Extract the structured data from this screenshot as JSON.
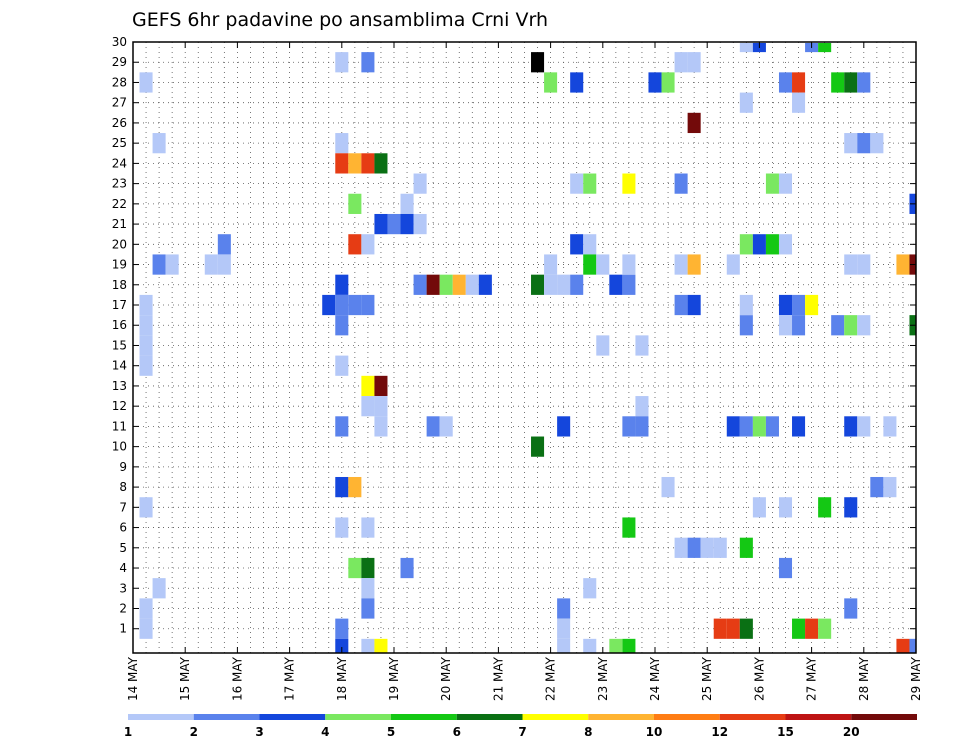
{
  "chart_data": {
    "type": "heatmap",
    "title": "GEFS 6hr padavine po ansamblima Crni Vrh",
    "xlabel": "",
    "ylabel": "",
    "x_ticks": [
      "14 MAY",
      "15 MAY",
      "16 MAY",
      "17 MAY",
      "18 MAY",
      "19 MAY",
      "20 MAY",
      "21 MAY",
      "22 MAY",
      "23 MAY",
      "24 MAY",
      "25 MAY",
      "26 MAY",
      "27 MAY",
      "28 MAY",
      "29 MAY"
    ],
    "y_ticks": [
      "1",
      "2",
      "3",
      "4",
      "5",
      "6",
      "7",
      "8",
      "9",
      "10",
      "11",
      "12",
      "13",
      "14",
      "15",
      "16",
      "17",
      "18",
      "19",
      "20",
      "21",
      "22",
      "23",
      "24",
      "25",
      "26",
      "27",
      "28",
      "29",
      "30"
    ],
    "x_range_days": [
      14,
      29
    ],
    "y_range_members": [
      0,
      30
    ],
    "step_per_day": 4,
    "grid": "dotted",
    "legend_position": "bottom",
    "legend_labels": [
      "1",
      "2",
      "3",
      "4",
      "5",
      "6",
      "7",
      "8",
      "10",
      "12",
      "15",
      "20"
    ],
    "legend_colors": [
      "#b4c8f8",
      "#5a82ec",
      "#1446dc",
      "#7ae860",
      "#14c814",
      "#0a7014",
      "#ffff00",
      "#ffb432",
      "#ff7d14",
      "#e63c14",
      "#be1414",
      "#730a0a"
    ],
    "cells": [
      [
        14.25,
        28,
        1
      ],
      [
        14.5,
        25,
        1
      ],
      [
        14.25,
        17,
        1
      ],
      [
        14.25,
        16,
        1
      ],
      [
        14.25,
        15,
        1
      ],
      [
        14.25,
        14,
        1
      ],
      [
        14.5,
        19,
        2
      ],
      [
        14.75,
        19,
        1
      ],
      [
        14.25,
        7,
        1
      ],
      [
        14.5,
        3,
        1
      ],
      [
        14.25,
        2,
        1
      ],
      [
        14.25,
        1,
        1
      ],
      [
        15.5,
        19,
        1
      ],
      [
        15.75,
        20,
        2
      ],
      [
        15.75,
        19,
        1
      ],
      [
        18,
        29,
        1
      ],
      [
        18.5,
        29,
        2
      ],
      [
        18,
        25,
        1
      ],
      [
        18,
        24,
        10
      ],
      [
        18.25,
        24,
        8
      ],
      [
        18.5,
        24,
        10
      ],
      [
        18.75,
        24,
        6
      ],
      [
        18.25,
        22,
        4
      ],
      [
        18.75,
        21,
        3
      ],
      [
        18.25,
        20,
        10
      ],
      [
        18.5,
        20,
        1
      ],
      [
        18,
        18,
        3
      ],
      [
        17.75,
        17,
        3
      ],
      [
        18,
        17,
        2
      ],
      [
        18.25,
        17,
        2
      ],
      [
        18.5,
        17,
        2
      ],
      [
        18,
        16,
        2
      ],
      [
        18,
        14,
        1
      ],
      [
        18.5,
        13,
        7
      ],
      [
        18.75,
        13,
        12
      ],
      [
        18.5,
        12,
        1
      ],
      [
        18.75,
        12,
        1
      ],
      [
        18,
        11,
        2
      ],
      [
        18.75,
        11,
        1
      ],
      [
        18,
        8,
        3
      ],
      [
        18.25,
        8,
        8
      ],
      [
        18,
        6,
        1
      ],
      [
        18.5,
        6,
        1
      ],
      [
        18.25,
        4,
        4
      ],
      [
        18.5,
        4,
        6
      ],
      [
        18.5,
        3,
        1
      ],
      [
        18.5,
        2,
        2
      ],
      [
        18,
        1,
        2
      ],
      [
        18,
        0,
        3
      ],
      [
        18.5,
        0,
        1
      ],
      [
        18.75,
        0,
        7
      ],
      [
        19.25,
        22,
        1
      ],
      [
        19.5,
        23,
        1
      ],
      [
        19,
        21,
        2
      ],
      [
        19.25,
        21,
        3
      ],
      [
        19.5,
        21,
        1
      ],
      [
        19.25,
        4,
        2
      ],
      [
        19.5,
        18,
        2
      ],
      [
        19.75,
        18,
        12
      ],
      [
        20,
        18,
        4
      ],
      [
        20.25,
        18,
        8
      ],
      [
        20.5,
        18,
        1
      ],
      [
        20.75,
        18,
        3
      ],
      [
        19.75,
        11,
        2
      ],
      [
        20,
        11,
        1
      ],
      [
        21.75,
        29,
        13
      ],
      [
        22,
        28,
        4
      ],
      [
        22.5,
        28,
        3
      ],
      [
        21.75,
        18,
        6
      ],
      [
        22,
        18,
        1
      ],
      [
        22.25,
        18,
        1
      ],
      [
        22.5,
        18,
        2
      ],
      [
        22,
        19,
        1
      ],
      [
        22.5,
        23,
        1
      ],
      [
        22.75,
        23,
        4
      ],
      [
        22.5,
        20,
        3
      ],
      [
        22.75,
        20,
        1
      ],
      [
        22.75,
        19,
        5
      ],
      [
        23,
        19,
        1
      ],
      [
        23,
        15,
        1
      ],
      [
        22.75,
        3,
        1
      ],
      [
        22.25,
        2,
        2
      ],
      [
        22.25,
        1,
        1
      ],
      [
        22.25,
        11,
        3
      ],
      [
        21.75,
        10,
        6
      ],
      [
        22.25,
        0,
        1
      ],
      [
        22.75,
        0,
        1
      ],
      [
        23.5,
        23,
        7
      ],
      [
        23.25,
        18,
        3
      ],
      [
        23.5,
        18,
        2
      ],
      [
        23.5,
        19,
        1
      ],
      [
        23.75,
        15,
        1
      ],
      [
        23.75,
        12,
        1
      ],
      [
        23.5,
        11,
        2
      ],
      [
        23.75,
        11,
        2
      ],
      [
        23.5,
        6,
        5
      ],
      [
        23.5,
        0,
        5
      ],
      [
        23.25,
        0,
        4
      ],
      [
        24,
        28,
        3
      ],
      [
        24.25,
        28,
        4
      ],
      [
        24.5,
        29,
        1
      ],
      [
        24.75,
        29,
        1
      ],
      [
        24.5,
        23,
        2
      ],
      [
        24.75,
        26,
        12
      ],
      [
        24.5,
        19,
        1
      ],
      [
        24.75,
        19,
        8
      ],
      [
        24.5,
        17,
        2
      ],
      [
        24.75,
        17,
        3
      ],
      [
        24.25,
        8,
        1
      ],
      [
        24.5,
        5,
        1
      ],
      [
        24.75,
        5,
        2
      ],
      [
        25,
        5,
        1
      ],
      [
        25.25,
        1,
        10
      ],
      [
        25.5,
        1,
        10
      ],
      [
        25.75,
        1,
        6
      ],
      [
        25.5,
        11,
        3
      ],
      [
        25.75,
        11,
        2
      ],
      [
        26,
        11,
        4
      ],
      [
        26.25,
        11,
        2
      ],
      [
        25.75,
        16,
        2
      ],
      [
        25.75,
        17,
        1
      ],
      [
        25.75,
        20,
        4
      ],
      [
        26,
        20,
        3
      ],
      [
        26.25,
        20,
        5
      ],
      [
        26.5,
        20,
        1
      ],
      [
        26.25,
        23,
        4
      ],
      [
        26.5,
        23,
        1
      ],
      [
        25.75,
        27,
        1
      ],
      [
        25.75,
        30,
        1
      ],
      [
        26,
        30,
        3
      ],
      [
        25.5,
        19,
        1
      ],
      [
        26,
        7,
        1
      ],
      [
        25.75,
        5,
        5
      ],
      [
        25.25,
        5,
        1
      ],
      [
        26.5,
        28,
        2
      ],
      [
        26.75,
        28,
        10
      ],
      [
        26.75,
        27,
        1
      ],
      [
        26.5,
        17,
        3
      ],
      [
        26.75,
        17,
        2
      ],
      [
        27,
        17,
        7
      ],
      [
        26.5,
        16,
        1
      ],
      [
        26.75,
        16,
        2
      ],
      [
        26.75,
        11,
        3
      ],
      [
        26.5,
        7,
        1
      ],
      [
        26.5,
        4,
        2
      ],
      [
        26.75,
        1,
        5
      ],
      [
        27,
        1,
        10
      ],
      [
        27.25,
        1,
        4
      ],
      [
        27,
        30,
        2
      ],
      [
        27.25,
        30,
        5
      ],
      [
        27.5,
        28,
        5
      ],
      [
        27.75,
        28,
        6
      ],
      [
        28,
        28,
        2
      ],
      [
        27.75,
        25,
        1
      ],
      [
        28,
        25,
        2
      ],
      [
        28.25,
        25,
        1
      ],
      [
        27.5,
        16,
        2
      ],
      [
        27.75,
        16,
        4
      ],
      [
        28,
        16,
        1
      ],
      [
        27.75,
        19,
        1
      ],
      [
        28,
        19,
        1
      ],
      [
        27.75,
        11,
        3
      ],
      [
        28,
        11,
        1
      ],
      [
        28.5,
        11,
        1
      ],
      [
        27.75,
        7,
        3
      ],
      [
        27.25,
        7,
        5
      ],
      [
        28.25,
        8,
        2
      ],
      [
        28.5,
        8,
        1
      ],
      [
        27.75,
        2,
        2
      ],
      [
        29,
        22,
        3
      ],
      [
        28.75,
        19,
        8
      ],
      [
        29,
        19,
        12
      ],
      [
        29,
        16,
        6
      ],
      [
        28.75,
        0,
        10
      ],
      [
        29,
        0,
        2
      ]
    ]
  }
}
